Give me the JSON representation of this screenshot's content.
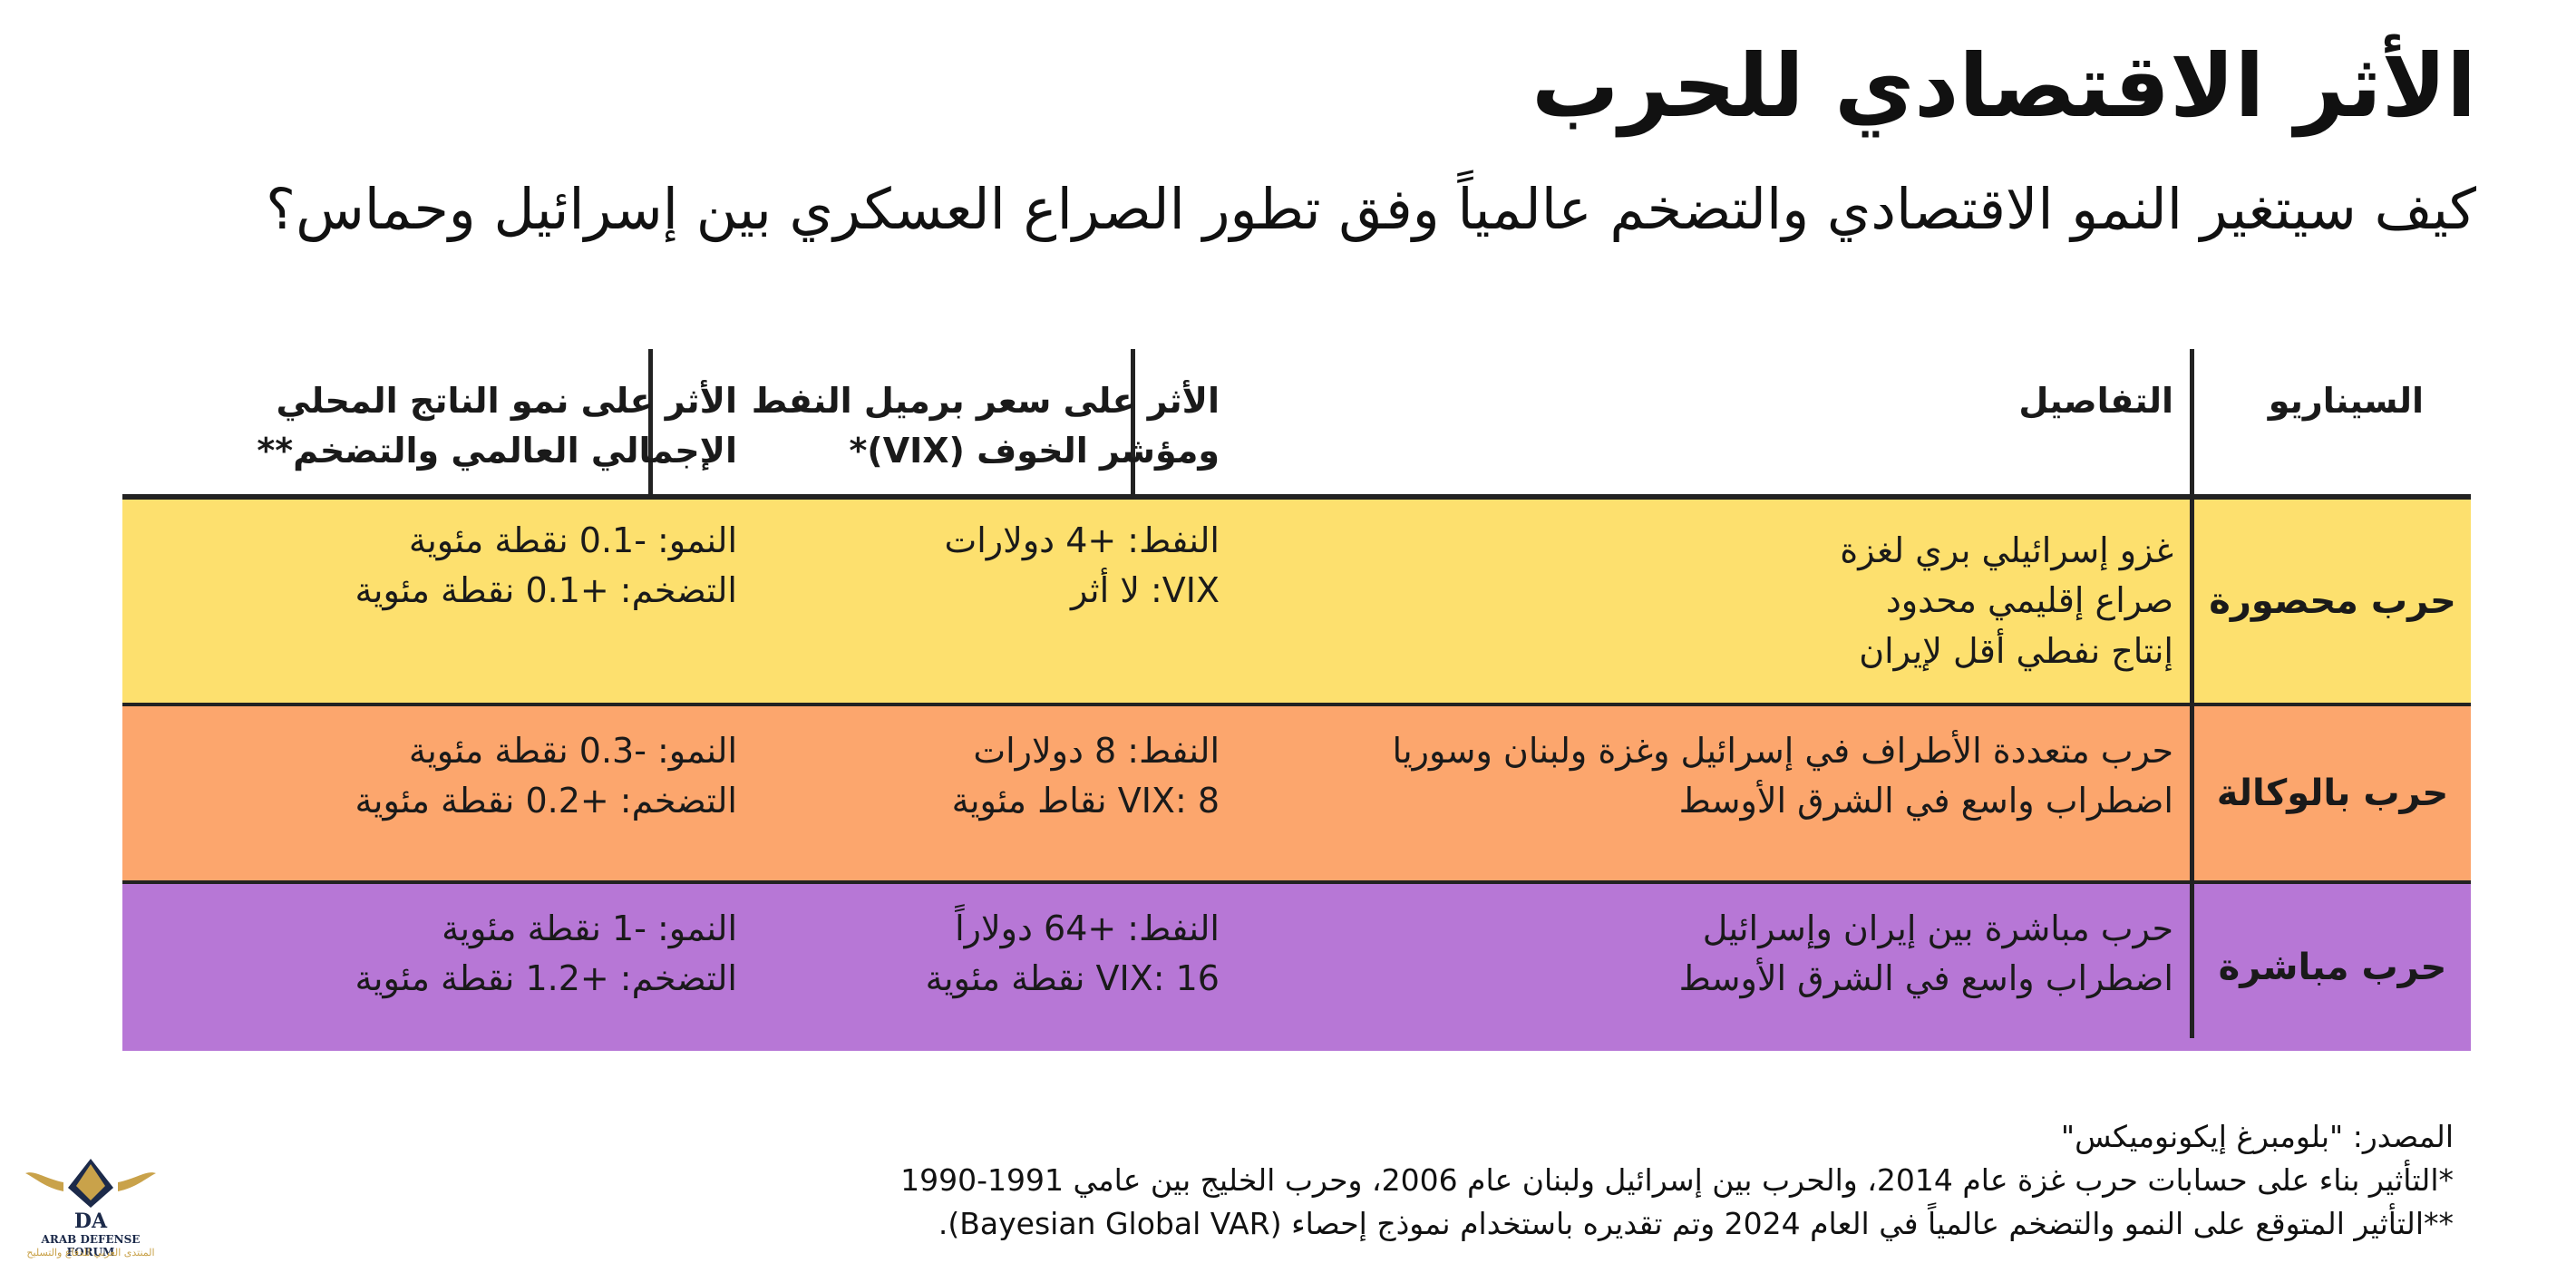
{
  "title": "الأثر الاقتصادي للحرب",
  "subtitle": "كيف سيتغير النمو الاقتصادي والتضخم عالمياً وفق تطور الصراع العسكري بين إسرائيل وحماس؟",
  "table": {
    "headers": {
      "scenario": "السيناريو",
      "details": "التفاصيل",
      "oil_line1": "الأثر على سعر برميل النفط",
      "oil_line2": "ومؤشر الخوف (VIX)*",
      "gdp_line1": "الأثر على نمو الناتج المحلي",
      "gdp_line2": "الإجمالي العالمي والتضخم**"
    },
    "rows": [
      {
        "scenario": "حرب محصورة",
        "details": [
          "غزو إسرائيلي بري لغزة",
          "صراع إقليمي محدود",
          "إنتاج نفطي أقل لإيران"
        ],
        "oil": [
          "النفط: +4 دولارات",
          "VIX: لا أثر"
        ],
        "gdp": [
          "النمو: -0.1 نقطة مئوية",
          "التضخم: +0.1 نقطة مئوية"
        ],
        "color": "#fde06e"
      },
      {
        "scenario": "حرب بالوكالة",
        "details": [
          "حرب متعددة الأطراف في إسرائيل وغزة ولبنان وسوريا",
          "اضطراب واسع في الشرق الأوسط"
        ],
        "oil": [
          "النفط: 8 دولارات",
          "VIX: 8 نقاط مئوية"
        ],
        "gdp": [
          "النمو: -0.3 نقطة مئوية",
          "التضخم: +0.2 نقطة مئوية"
        ],
        "color": "#fca66d"
      },
      {
        "scenario": "حرب مباشرة",
        "details": [
          "حرب مباشرة بين إيران وإسرائيل",
          "اضطراب واسع في الشرق الأوسط"
        ],
        "oil": [
          "النفط: +64 دولاراً",
          "VIX: 16 نقطة مئوية"
        ],
        "gdp": [
          "النمو: -1 نقطة مئوية",
          "التضخم: +1.2 نقطة مئوية"
        ],
        "color": "#b777d6"
      }
    ]
  },
  "footer": {
    "source": "المصدر: \"بلومبرغ إيكونوميكس\"",
    "note1": "*التأثير بناء على حسابات حرب غزة عام 2014، والحرب بين إسرائيل ولبنان عام 2006، وحرب الخليج بين عامي 1991-1990",
    "note2": "**التأثير المتوقع على النمو والتضخم عالمياً في العام 2024 وتم تقديره باستخدام نموذج إحصاء (Bayesian Global VAR)."
  },
  "logo": {
    "line1": "DA",
    "line2": "ARAB DEFENSE FORUM",
    "line3": "المنتدى العربي للدفاع والتسليح"
  }
}
